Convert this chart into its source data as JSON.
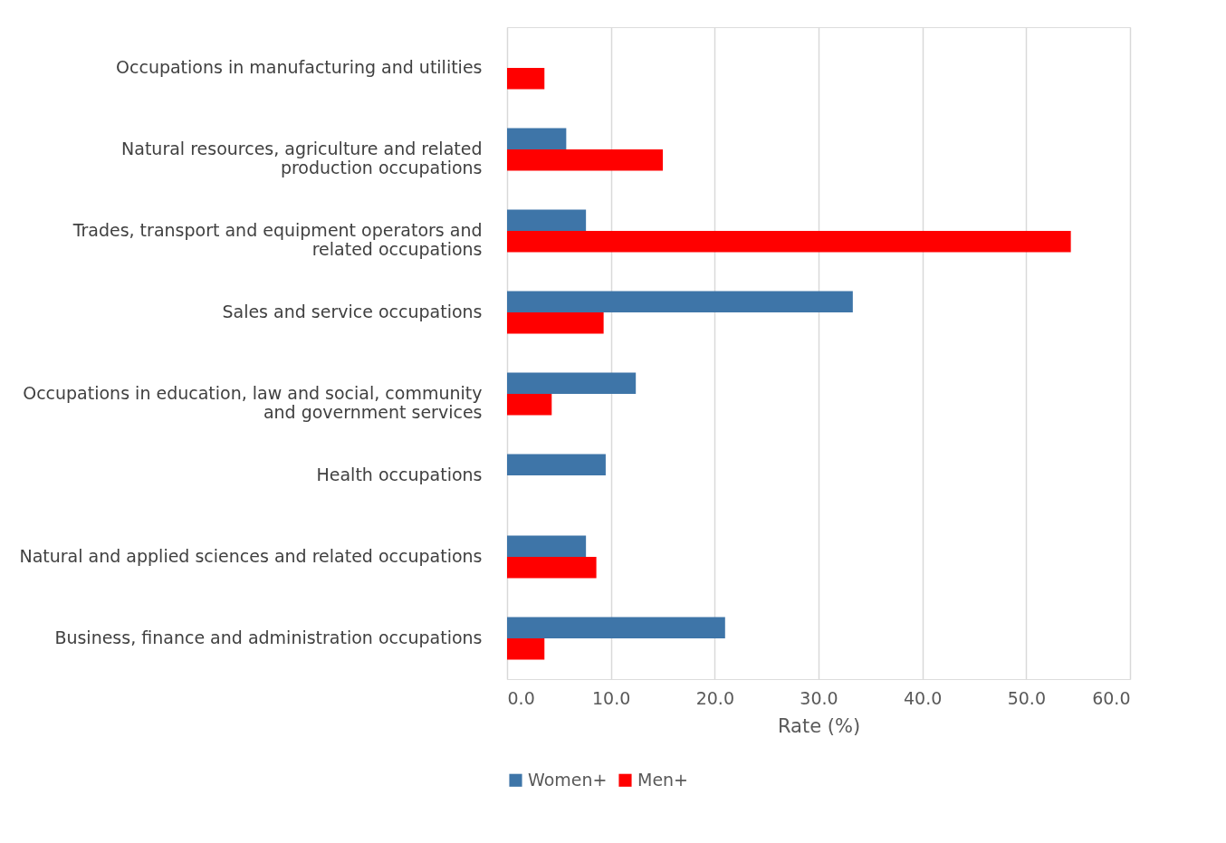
{
  "chart_data": {
    "type": "bar",
    "orientation": "horizontal",
    "xlabel": "Rate (%)",
    "categories": [
      "Occupations in manufacturing and utilities",
      "Natural resources, agriculture and related production occupations",
      "Trades, transport and equipment operators and related occupations",
      "Sales and service occupations",
      "Occupations in education, law and social, community and government services",
      "Health occupations",
      "Natural and applied sciences and related occupations",
      "Business, finance and administration occupations"
    ],
    "series": [
      {
        "name": "Women+",
        "color": "#3e75a8",
        "values": [
          null,
          5.7,
          7.6,
          33.3,
          12.4,
          9.5,
          7.6,
          21.0
        ]
      },
      {
        "name": "Men+",
        "color": "#ff0000",
        "values": [
          3.6,
          15.0,
          54.3,
          9.3,
          4.3,
          null,
          8.6,
          3.6
        ]
      }
    ],
    "xlim": [
      0,
      60
    ],
    "xticks": [
      {
        "value": 0,
        "label": "0.0"
      },
      {
        "value": 10,
        "label": "10.0"
      },
      {
        "value": 20,
        "label": "20.0"
      },
      {
        "value": 30,
        "label": "30.0"
      },
      {
        "value": 40,
        "label": "40.0"
      },
      {
        "value": 50,
        "label": "50.0"
      },
      {
        "value": 60,
        "label": "60.0"
      }
    ],
    "grid": "x",
    "legend": "bottom"
  }
}
